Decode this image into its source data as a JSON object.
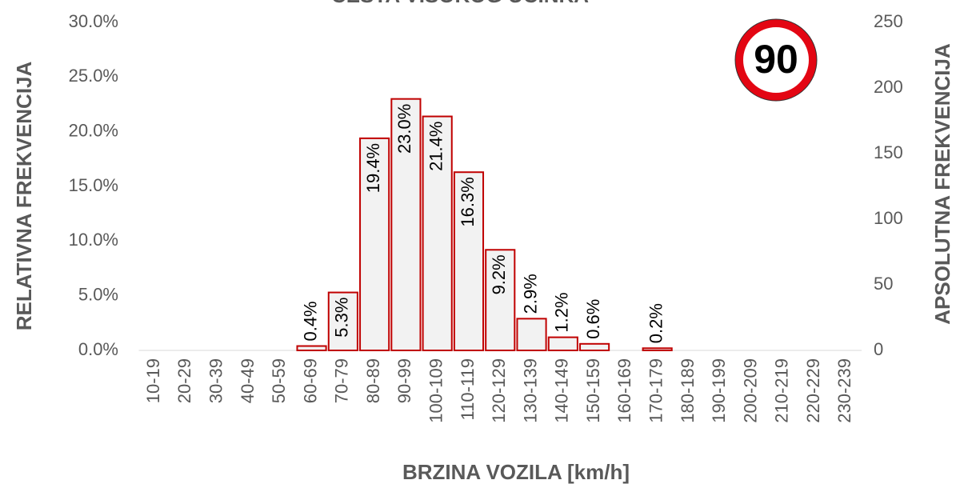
{
  "chart_data": {
    "type": "bar",
    "title": "CESTA VISOKOG UČINKA",
    "xlabel": "BRZINA VOZILA [km/h]",
    "ylabel": "RELATIVNA FREKVENCIJA",
    "y2label": "APSOLUTNA FREKVENCIJA",
    "annotation": "90",
    "categories": [
      "10-19",
      "20-29",
      "30-39",
      "40-49",
      "50-59",
      "60-69",
      "70-79",
      "80-89",
      "90-99",
      "100-109",
      "110-119",
      "120-129",
      "130-139",
      "140-149",
      "150-159",
      "160-169",
      "170-179",
      "180-189",
      "190-199",
      "200-209",
      "210-219",
      "220-229",
      "230-239"
    ],
    "values": [
      0,
      0,
      0,
      0,
      0,
      0.4,
      5.3,
      19.4,
      23.0,
      21.4,
      16.3,
      9.2,
      2.9,
      1.2,
      0.6,
      0,
      0.2,
      0,
      0,
      0,
      0,
      0,
      0
    ],
    "value_labels": [
      null,
      null,
      null,
      null,
      null,
      "0.4%",
      "5.3%",
      "19.4%",
      "23.0%",
      "21.4%",
      "16.3%",
      "9.2%",
      "2.9%",
      "1.2%",
      "0.6%",
      null,
      "0.2%",
      null,
      null,
      null,
      null,
      null,
      null
    ],
    "color": "#f2f2f2",
    "edge_color": "#c00000",
    "ylim": [
      0,
      30
    ],
    "yticks": [
      {
        "value": 0,
        "label": "0.0%"
      },
      {
        "value": 5,
        "label": "5.0%"
      },
      {
        "value": 10,
        "label": "10.0%"
      },
      {
        "value": 15,
        "label": "15.0%"
      },
      {
        "value": 20,
        "label": "20.0%"
      },
      {
        "value": 25,
        "label": "25.0%"
      },
      {
        "value": 30,
        "label": "30.0%"
      }
    ],
    "y2lim": [
      0,
      250
    ],
    "y2ticks": [
      0,
      50,
      100,
      150,
      200,
      250
    ],
    "grid": false
  }
}
